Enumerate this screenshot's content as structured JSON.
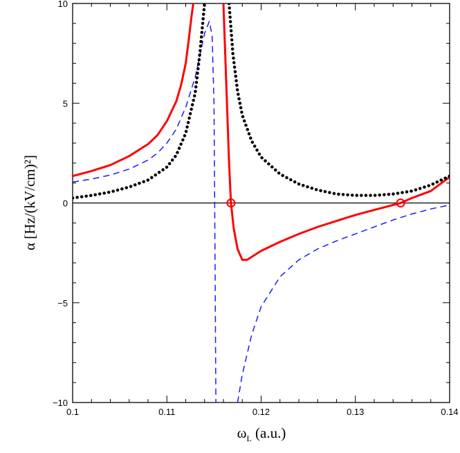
{
  "chart_data": {
    "type": "line",
    "title": "",
    "xlabel": {
      "symbol": "ω",
      "subscript": "L",
      "unit": " (a.u.)"
    },
    "ylabel": "α  [Hz/(kV/cm)²]",
    "xlim": [
      0.1,
      0.14
    ],
    "ylim": [
      -10,
      10
    ],
    "x_ticks": [
      {
        "value": 0.1,
        "label": "0.1"
      },
      {
        "value": 0.11,
        "label": "0.11"
      },
      {
        "value": 0.12,
        "label": "0.12"
      },
      {
        "value": 0.13,
        "label": "0.13"
      },
      {
        "value": 0.14,
        "label": "0.14"
      }
    ],
    "y_ticks": [
      {
        "value": -10,
        "label": "−10"
      },
      {
        "value": -5,
        "label": "−5"
      },
      {
        "value": 0,
        "label": "0"
      },
      {
        "value": 5,
        "label": "5"
      },
      {
        "value": 10,
        "label": "10"
      }
    ],
    "zero_line": true,
    "series": [
      {
        "name": "blue-dashed",
        "color": "#1a1aff",
        "style": "dashed",
        "segments": [
          [
            [
              0.1,
              1.05
            ],
            [
              0.102,
              1.2
            ],
            [
              0.104,
              1.4
            ],
            [
              0.106,
              1.7
            ],
            [
              0.108,
              2.15
            ],
            [
              0.109,
              2.5
            ],
            [
              0.11,
              3.0
            ],
            [
              0.111,
              3.7
            ],
            [
              0.112,
              4.8
            ],
            [
              0.113,
              6.3
            ],
            [
              0.1135,
              7.4
            ],
            [
              0.114,
              8.5
            ],
            [
              0.1145,
              9.1
            ],
            [
              0.1148,
              8.4
            ],
            [
              0.115,
              5.0
            ],
            [
              0.1151,
              -2.0
            ],
            [
              0.1152,
              -10
            ]
          ],
          [
            [
              0.1175,
              -10
            ],
            [
              0.118,
              -8.6
            ],
            [
              0.119,
              -6.6
            ],
            [
              0.12,
              -5.2
            ],
            [
              0.122,
              -3.7
            ],
            [
              0.124,
              -2.85
            ],
            [
              0.126,
              -2.3
            ],
            [
              0.128,
              -1.9
            ],
            [
              0.13,
              -1.55
            ],
            [
              0.132,
              -1.2
            ],
            [
              0.134,
              -0.85
            ],
            [
              0.136,
              -0.55
            ],
            [
              0.138,
              -0.3
            ],
            [
              0.14,
              -0.1
            ]
          ]
        ]
      },
      {
        "name": "red-solid",
        "color": "#ff0000",
        "style": "solid",
        "segments": [
          [
            [
              0.1,
              1.35
            ],
            [
              0.102,
              1.6
            ],
            [
              0.104,
              1.9
            ],
            [
              0.106,
              2.35
            ],
            [
              0.108,
              2.95
            ],
            [
              0.109,
              3.4
            ],
            [
              0.11,
              4.1
            ],
            [
              0.111,
              5.1
            ],
            [
              0.1115,
              5.9
            ],
            [
              0.112,
              7.0
            ],
            [
              0.1123,
              8.1
            ],
            [
              0.1126,
              9.3
            ],
            [
              0.1128,
              10
            ]
          ],
          [
            [
              0.116,
              10
            ],
            [
              0.1163,
              6.0
            ],
            [
              0.1166,
              2.0
            ],
            [
              0.1168,
              0
            ],
            [
              0.1171,
              -1.3
            ],
            [
              0.1175,
              -2.3
            ],
            [
              0.118,
              -2.85
            ],
            [
              0.1185,
              -2.85
            ],
            [
              0.119,
              -2.7
            ],
            [
              0.12,
              -2.4
            ],
            [
              0.122,
              -1.95
            ],
            [
              0.124,
              -1.55
            ],
            [
              0.126,
              -1.2
            ],
            [
              0.128,
              -0.9
            ],
            [
              0.13,
              -0.6
            ],
            [
              0.132,
              -0.35
            ],
            [
              0.1348,
              0
            ],
            [
              0.136,
              0.25
            ],
            [
              0.138,
              0.6
            ],
            [
              0.14,
              1.3
            ]
          ]
        ]
      },
      {
        "name": "black-dotted",
        "color": "#000000",
        "style": "dotted",
        "segments": [
          [
            [
              0.1,
              0.25
            ],
            [
              0.102,
              0.38
            ],
            [
              0.104,
              0.55
            ],
            [
              0.106,
              0.8
            ],
            [
              0.108,
              1.15
            ],
            [
              0.11,
              1.8
            ],
            [
              0.111,
              2.4
            ],
            [
              0.112,
              3.5
            ],
            [
              0.113,
              5.5
            ],
            [
              0.1135,
              7.5
            ],
            [
              0.114,
              10
            ]
          ],
          [
            [
              0.1166,
              10
            ],
            [
              0.117,
              7.5
            ],
            [
              0.1175,
              5.6
            ],
            [
              0.118,
              4.4
            ],
            [
              0.119,
              3.1
            ],
            [
              0.12,
              2.3
            ],
            [
              0.122,
              1.45
            ],
            [
              0.124,
              0.95
            ],
            [
              0.126,
              0.65
            ],
            [
              0.128,
              0.45
            ],
            [
              0.13,
              0.38
            ],
            [
              0.132,
              0.38
            ],
            [
              0.134,
              0.45
            ],
            [
              0.136,
              0.6
            ],
            [
              0.138,
              0.9
            ],
            [
              0.14,
              1.35
            ]
          ]
        ]
      }
    ],
    "markers": [
      {
        "name": "zero-crossing-1",
        "x": 0.1168,
        "y": 0,
        "color": "#ff0000",
        "shape": "open-circle"
      },
      {
        "name": "zero-crossing-2",
        "x": 0.1348,
        "y": 0,
        "color": "#ff0000",
        "shape": "open-circle"
      }
    ]
  }
}
